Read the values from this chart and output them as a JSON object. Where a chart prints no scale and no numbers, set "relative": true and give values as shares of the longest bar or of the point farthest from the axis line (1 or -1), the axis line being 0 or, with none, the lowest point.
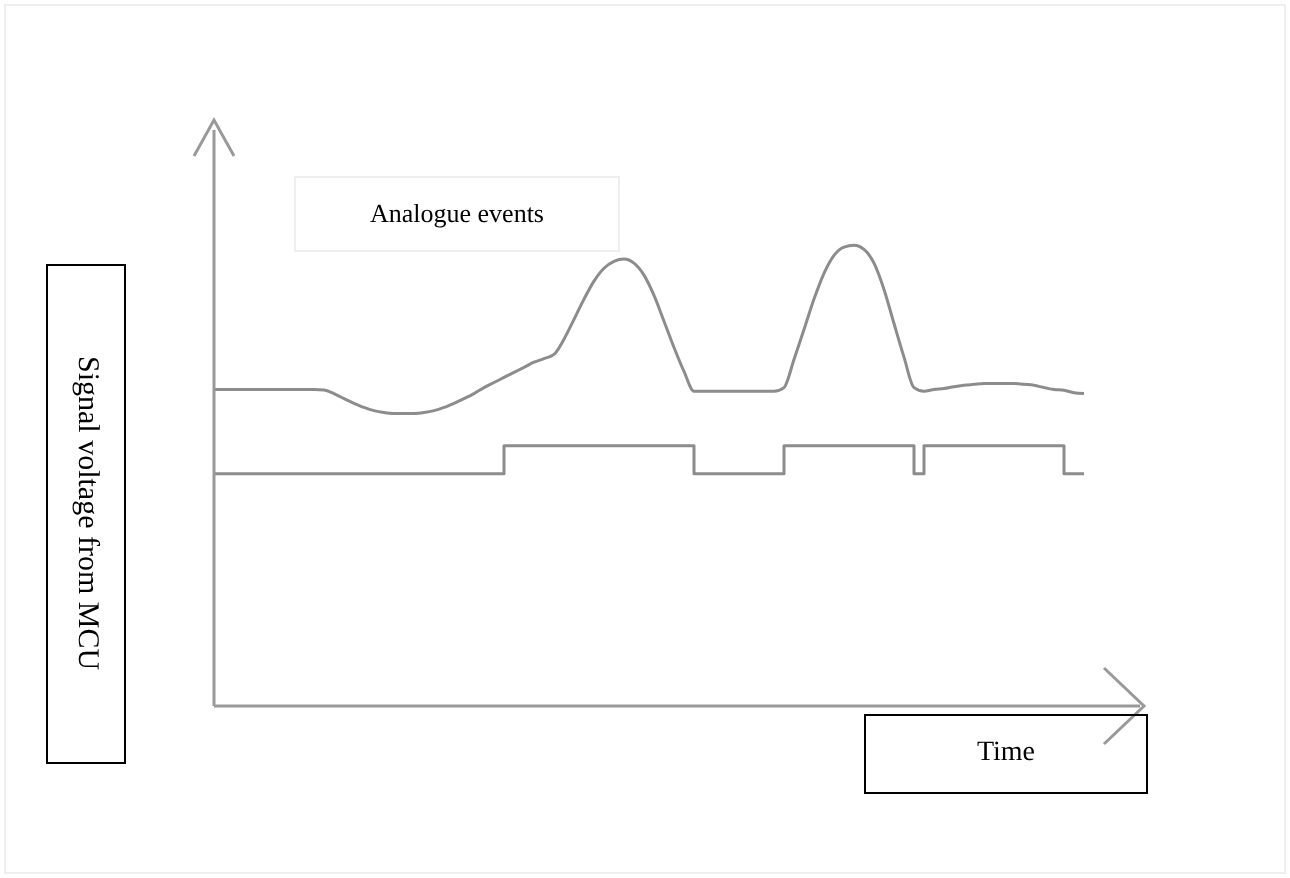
{
  "chart_data": {
    "type": "line",
    "relative": true,
    "xlabel": "Time",
    "ylabel": "Signal voltage from MCU",
    "annotations": [
      "Analogue events"
    ],
    "marker": "none",
    "categories": [
      null,
      null,
      null,
      null,
      null,
      null,
      null,
      null,
      null,
      null,
      null,
      null,
      null,
      null,
      null,
      null,
      null,
      null,
      null,
      null,
      null,
      null,
      null,
      null,
      null,
      null,
      null,
      null,
      null,
      null,
      null,
      null,
      null,
      null,
      null,
      null,
      null,
      null,
      null,
      null,
      null,
      null,
      null,
      null,
      null,
      null,
      null,
      null,
      null,
      null,
      null,
      null,
      null,
      null,
      null,
      null,
      null,
      null,
      null,
      null,
      null,
      null,
      null,
      null,
      null,
      null,
      null,
      null,
      null,
      null,
      null,
      null,
      null,
      null,
      null,
      null,
      null,
      null,
      null,
      null,
      null,
      null,
      null,
      null,
      null,
      null,
      null,
      null
    ],
    "series": [
      {
        "type": "line",
        "color": "#8c8c8c",
        "values": [
          0.687,
          0.687,
          0.687,
          0.687,
          0.687,
          0.687,
          0.687,
          0.687,
          0.687,
          0.687,
          0.687,
          0.686,
          0.678,
          0.667,
          0.657,
          0.648,
          0.641,
          0.637,
          0.635,
          0.635,
          0.635,
          0.637,
          0.641,
          0.648,
          0.657,
          0.667,
          0.678,
          0.691,
          0.702,
          0.713,
          0.724,
          0.735,
          0.746,
          0.754,
          0.763,
          0.796,
          0.839,
          0.883,
          0.922,
          0.95,
          0.965,
          0.97,
          0.961,
          0.935,
          0.891,
          0.835,
          0.778,
          0.726,
          0.683,
          0.683,
          0.683,
          0.683,
          0.683,
          0.683,
          0.683,
          0.683,
          0.683,
          0.691,
          0.752,
          0.817,
          0.883,
          0.939,
          0.978,
          0.996,
          1,
          0.991,
          0.961,
          0.904,
          0.83,
          0.757,
          0.691,
          0.683,
          0.687,
          0.689,
          0.693,
          0.696,
          0.698,
          0.7,
          0.7,
          0.7,
          0.7,
          0.698,
          0.696,
          0.691,
          0.687,
          0.685,
          0.68,
          0.678
        ]
      },
      {
        "type": "step",
        "color": "#8c8c8c",
        "values": [
          0.504,
          0.504,
          0.504,
          0.504,
          0.504,
          0.504,
          0.504,
          0.504,
          0.504,
          0.504,
          0.504,
          0.504,
          0.504,
          0.504,
          0.504,
          0.504,
          0.504,
          0.504,
          0.504,
          0.504,
          0.504,
          0.504,
          0.504,
          0.504,
          0.504,
          0.504,
          0.504,
          0.504,
          0.504,
          0.565,
          0.565,
          0.565,
          0.565,
          0.565,
          0.565,
          0.565,
          0.565,
          0.565,
          0.565,
          0.565,
          0.565,
          0.565,
          0.565,
          0.565,
          0.565,
          0.565,
          0.565,
          0.565,
          0.504,
          0.504,
          0.504,
          0.504,
          0.504,
          0.504,
          0.504,
          0.504,
          0.504,
          0.565,
          0.565,
          0.565,
          0.565,
          0.565,
          0.565,
          0.565,
          0.565,
          0.565,
          0.565,
          0.565,
          0.565,
          0.565,
          0.504,
          0.565,
          0.565,
          0.565,
          0.565,
          0.565,
          0.565,
          0.565,
          0.565,
          0.565,
          0.565,
          0.565,
          0.565,
          0.565,
          0.565,
          0.504,
          0.504,
          0.504
        ]
      }
    ]
  }
}
